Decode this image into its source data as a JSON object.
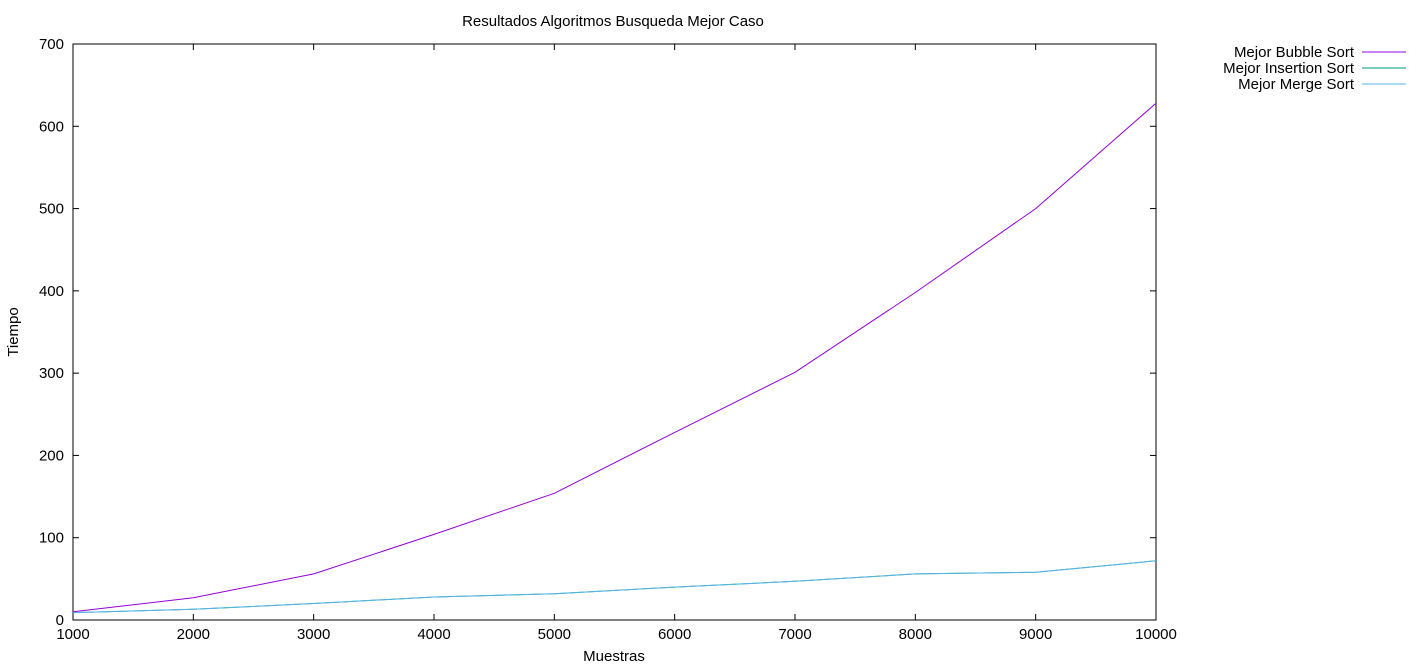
{
  "chart_data": {
    "type": "line",
    "title": "Resultados Algoritmos Busqueda Mejor Caso",
    "xlabel": "Muestras",
    "ylabel": "Tiempo",
    "xlim": [
      1000,
      10000
    ],
    "ylim": [
      0,
      700
    ],
    "xticks": [
      1000,
      2000,
      3000,
      4000,
      5000,
      6000,
      7000,
      8000,
      9000,
      10000
    ],
    "yticks": [
      0,
      100,
      200,
      300,
      400,
      500,
      600,
      700
    ],
    "grid": false,
    "legend_position": "top-right-outside",
    "series": [
      {
        "name": "Mejor Bubble Sort",
        "color": "#9400d3",
        "x": [
          1000,
          2000,
          3000,
          4000,
          5000,
          6000,
          7000,
          8000,
          9000,
          10000
        ],
        "y": [
          10,
          27,
          56,
          104,
          154,
          228,
          301,
          398,
          500,
          628
        ]
      },
      {
        "name": "Mejor Insertion Sort",
        "color": "#009e73",
        "x": [
          1000,
          2000,
          3000,
          4000,
          5000,
          6000,
          7000,
          8000,
          9000,
          10000
        ],
        "y": [
          9,
          13,
          20,
          28,
          32,
          40,
          47,
          56,
          58,
          72
        ]
      },
      {
        "name": "Mejor Merge Sort",
        "color": "#56b4e9",
        "x": [
          1000,
          2000,
          3000,
          4000,
          5000,
          6000,
          7000,
          8000,
          9000,
          10000
        ],
        "y": [
          9,
          13,
          20,
          28,
          32,
          40,
          47,
          56,
          58,
          72
        ]
      }
    ]
  }
}
